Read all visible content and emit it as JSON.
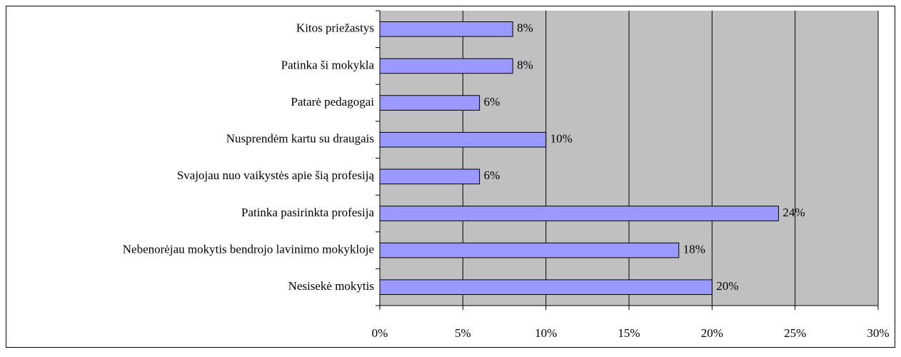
{
  "chart_data": {
    "type": "barh",
    "categories": [
      "Kitos priežastys",
      "Patinka ši mokykla",
      "Patarė pedagogai",
      "Nusprendėm kartu su draugais",
      "Svajojau nuo vaikystės apie šią profesiją",
      "Patinka pasirinkta profesija",
      "Nebenorėjau mokytis bendrojo lavinimo mokykloje",
      "Nesisekė mokytis"
    ],
    "values": [
      8,
      8,
      6,
      10,
      6,
      24,
      18,
      20
    ],
    "value_labels": [
      "8%",
      "8%",
      "6%",
      "10%",
      "6%",
      "24%",
      "18%",
      "20%"
    ],
    "color": "#9999ff",
    "xlim": [
      0,
      30
    ],
    "xticks": [
      {
        "value": 0,
        "label": "0%"
      },
      {
        "value": 5,
        "label": "5%"
      },
      {
        "value": 10,
        "label": "10%"
      },
      {
        "value": 15,
        "label": "15%"
      },
      {
        "value": 20,
        "label": "20%"
      },
      {
        "value": 25,
        "label": "25%"
      },
      {
        "value": 30,
        "label": "30%"
      }
    ],
    "grid": true
  }
}
